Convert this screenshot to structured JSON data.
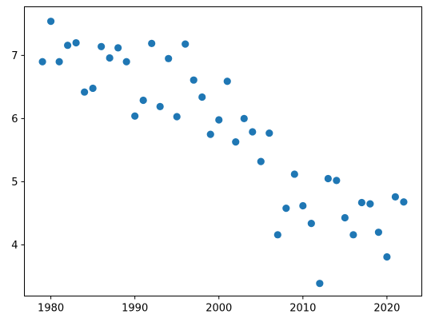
{
  "chart_data": {
    "type": "scatter",
    "title": "",
    "xlabel": "",
    "ylabel": "",
    "xlim": [
      1976.85,
      2024.15
    ],
    "ylim": [
      3.19,
      7.77
    ],
    "x_ticks": [
      1980,
      1990,
      2000,
      2010,
      2020
    ],
    "y_ticks": [
      4,
      5,
      6,
      7
    ],
    "x_tick_labels": [
      "1980",
      "1990",
      "2000",
      "2010",
      "2020"
    ],
    "y_tick_labels": [
      "4",
      "5",
      "6",
      "7"
    ],
    "grid": false,
    "marker_color": "#1f77b4",
    "series": [
      {
        "x": [
          1979,
          1980,
          1981,
          1982,
          1983,
          1984,
          1985,
          1986,
          1987,
          1988,
          1989,
          1990,
          1991,
          1992,
          1993,
          1994,
          1995,
          1996,
          1997,
          1998,
          1999,
          2000,
          2001,
          2002,
          2003,
          2004,
          2005,
          2006,
          2007,
          2008,
          2009,
          2010,
          2011,
          2012,
          2013,
          2014,
          2015,
          2016,
          2017,
          2018,
          2019,
          2020,
          2021,
          2022
        ],
        "y": [
          6.9,
          7.54,
          6.9,
          7.16,
          7.2,
          6.42,
          6.48,
          7.14,
          6.96,
          7.12,
          6.9,
          6.04,
          6.29,
          7.19,
          6.19,
          6.95,
          6.03,
          7.18,
          6.61,
          6.34,
          5.75,
          5.98,
          6.59,
          5.63,
          6.0,
          5.79,
          5.32,
          5.77,
          4.16,
          4.58,
          5.12,
          4.62,
          4.34,
          3.39,
          5.05,
          5.02,
          4.43,
          4.16,
          4.67,
          4.65,
          4.2,
          3.81,
          4.76,
          4.68
        ]
      }
    ]
  }
}
